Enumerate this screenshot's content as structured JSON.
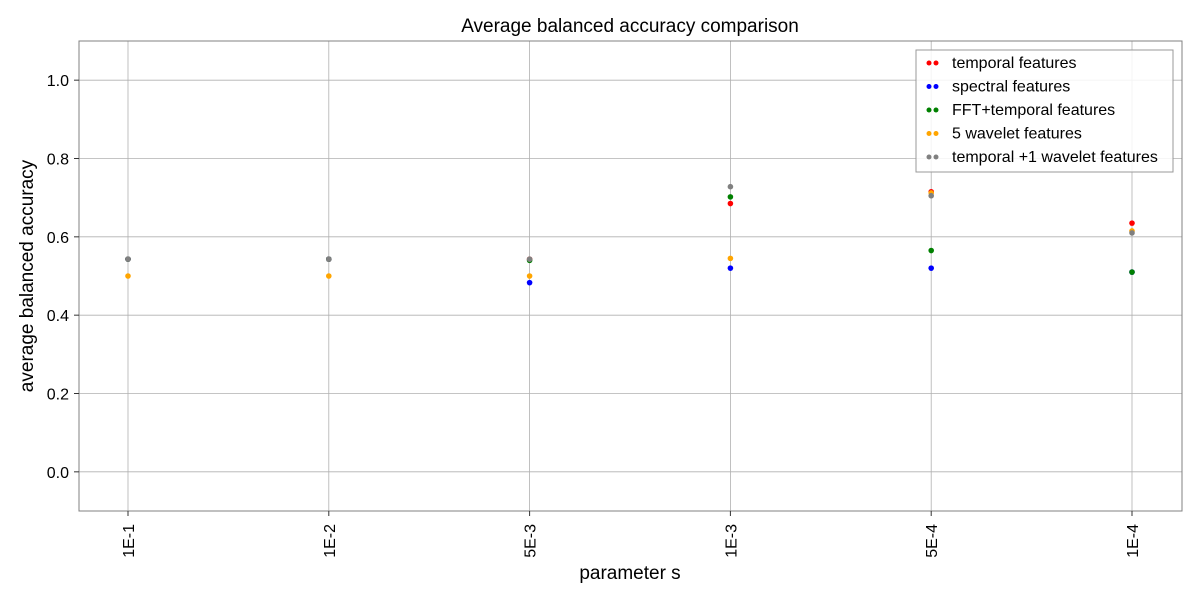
{
  "chart_data": {
    "type": "scatter",
    "title": "Average balanced accuracy comparison",
    "xlabel": "parameter s",
    "ylabel": "average balanced accuracy",
    "categories": [
      "1E-1",
      "1E-2",
      "5E-3",
      "1E-3",
      "5E-4",
      "1E-4"
    ],
    "ylim": [
      -0.1,
      1.1
    ],
    "yticks": [
      0.0,
      0.2,
      0.4,
      0.6,
      0.8,
      1.0
    ],
    "ytick_labels": [
      "0.0",
      "0.2",
      "0.4",
      "0.6",
      "0.8",
      "1.0"
    ],
    "grid": true,
    "legend_position": "top-right",
    "series": [
      {
        "name": "temporal features",
        "color": "#ff0000",
        "values": [
          0.543,
          0.543,
          0.543,
          0.685,
          0.715,
          0.635
        ]
      },
      {
        "name": "spectral features",
        "color": "#0000ff",
        "values": [
          0.543,
          0.543,
          0.483,
          0.52,
          0.52,
          0.51
        ]
      },
      {
        "name": "FFT+temporal features",
        "color": "#008000",
        "values": [
          0.543,
          0.543,
          0.54,
          0.702,
          0.565,
          0.51
        ]
      },
      {
        "name": "5 wavelet features",
        "color": "#ffa500",
        "values": [
          0.5,
          0.5,
          0.5,
          0.545,
          0.712,
          0.615
        ]
      },
      {
        "name": "temporal +1 wavelet features",
        "color": "#808080",
        "values": [
          0.543,
          0.543,
          0.543,
          0.728,
          0.705,
          0.61
        ]
      }
    ]
  }
}
